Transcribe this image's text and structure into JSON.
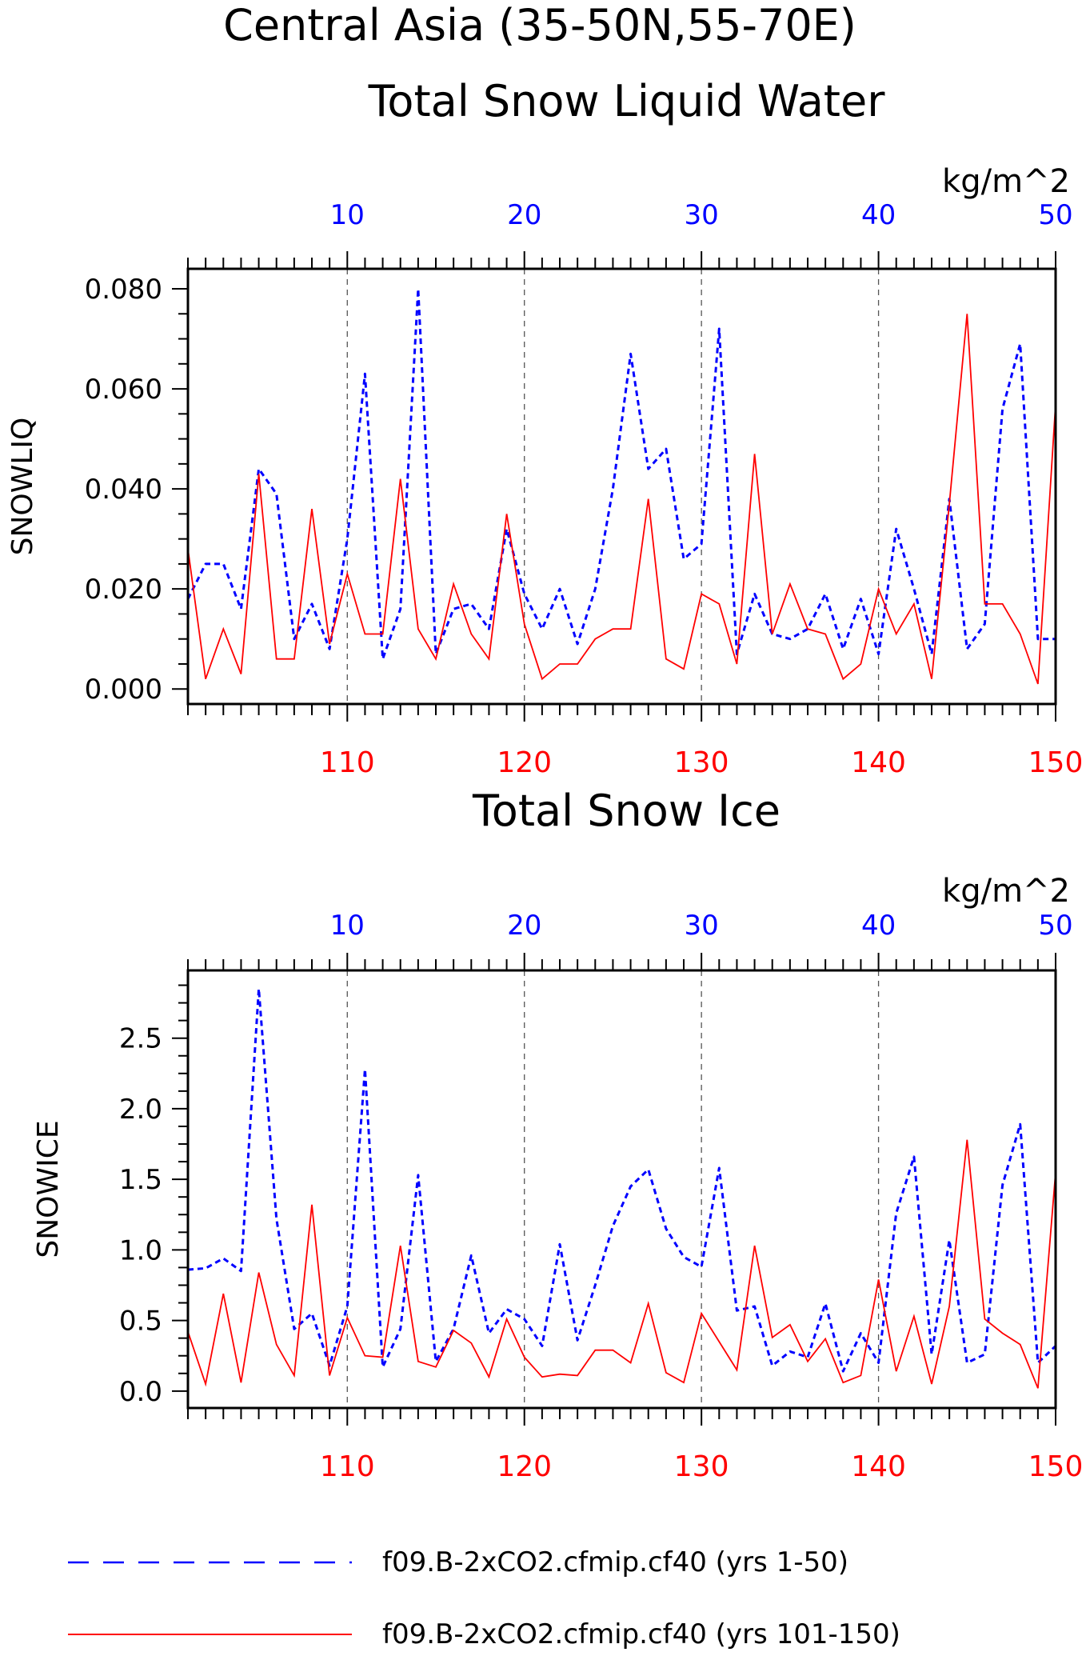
{
  "figure": {
    "title_line1": "Central Asia (35-50N,55-70E)",
    "legend": [
      {
        "label": "f09.B-2xCO2.cfmip.cf40 (yrs 1-50)",
        "color": "#0000ff",
        "style": "dashed"
      },
      {
        "label": "f09.B-2xCO2.cfmip.cf40 (yrs 101-150)",
        "color": "#ff0000",
        "style": "solid"
      }
    ],
    "colors": {
      "top_axis": "#0000ff",
      "bottom_axis": "#ff0000",
      "text": "#000000",
      "grid": "#555555"
    }
  },
  "chart_data": [
    {
      "type": "line",
      "title": "Total Snow Liquid Water",
      "units": "kg/m^2",
      "ylabel": "SNOWLIQ",
      "ylim": [
        -0.003,
        0.084
      ],
      "yticks": [
        0.0,
        0.02,
        0.04,
        0.06,
        0.08
      ],
      "ytick_labels": [
        "0.000",
        "0.020",
        "0.040",
        "0.060",
        "0.080"
      ],
      "top_xaxis": {
        "range": [
          1,
          50
        ],
        "ticks": [
          10,
          20,
          30,
          40,
          50
        ],
        "tick_labels": [
          "10",
          "20",
          "30",
          "40",
          "50"
        ]
      },
      "bottom_xaxis": {
        "range": [
          101,
          150
        ],
        "ticks": [
          110,
          120,
          130,
          140,
          150
        ],
        "tick_labels": [
          "110",
          "120",
          "130",
          "140",
          "150"
        ]
      },
      "grid": "vertical dashed at labeled x ticks",
      "series": [
        {
          "x": [
            1,
            2,
            3,
            4,
            5,
            6,
            7,
            8,
            9,
            10,
            11,
            12,
            13,
            14,
            15,
            16,
            17,
            18,
            19,
            20,
            21,
            22,
            23,
            24,
            25,
            26,
            27,
            28,
            29,
            30,
            31,
            32,
            33,
            34,
            35,
            36,
            37,
            38,
            39,
            40,
            41,
            42,
            43,
            44,
            45,
            46,
            47,
            48,
            49,
            50
          ],
          "values": [
            0.018,
            0.025,
            0.025,
            0.016,
            0.044,
            0.039,
            0.01,
            0.017,
            0.008,
            0.03,
            0.063,
            0.006,
            0.016,
            0.08,
            0.007,
            0.016,
            0.017,
            0.012,
            0.032,
            0.019,
            0.012,
            0.02,
            0.009,
            0.02,
            0.04,
            0.067,
            0.044,
            0.048,
            0.026,
            0.029,
            0.072,
            0.007,
            0.019,
            0.011,
            0.01,
            0.012,
            0.019,
            0.008,
            0.018,
            0.007,
            0.032,
            0.02,
            0.007,
            0.038,
            0.008,
            0.013,
            0.056,
            0.069,
            0.01,
            0.01
          ]
        },
        {
          "x": [
            101,
            102,
            103,
            104,
            105,
            106,
            107,
            108,
            109,
            110,
            111,
            112,
            113,
            114,
            115,
            116,
            117,
            118,
            119,
            120,
            121,
            122,
            123,
            124,
            125,
            126,
            127,
            128,
            129,
            130,
            131,
            132,
            133,
            134,
            135,
            136,
            137,
            138,
            139,
            140,
            141,
            142,
            143,
            144,
            145,
            146,
            147,
            148,
            149,
            150
          ],
          "values": [
            0.028,
            0.002,
            0.012,
            0.003,
            0.043,
            0.006,
            0.006,
            0.036,
            0.009,
            0.023,
            0.011,
            0.011,
            0.042,
            0.012,
            0.006,
            0.021,
            0.011,
            0.006,
            0.035,
            0.013,
            0.002,
            0.005,
            0.005,
            0.01,
            0.012,
            0.012,
            0.038,
            0.006,
            0.004,
            0.019,
            0.017,
            0.005,
            0.047,
            0.011,
            0.021,
            0.012,
            0.011,
            0.002,
            0.005,
            0.02,
            0.011,
            0.017,
            0.002,
            0.037,
            0.075,
            0.017,
            0.017,
            0.011,
            0.001,
            0.057
          ]
        }
      ]
    },
    {
      "type": "line",
      "title": "Total Snow Ice",
      "units": "kg/m^2",
      "ylabel": "SNOWICE",
      "ylim": [
        -0.12,
        2.98
      ],
      "yticks": [
        0.0,
        0.5,
        1.0,
        1.5,
        2.0,
        2.5
      ],
      "ytick_labels": [
        "0.0",
        "0.5",
        "1.0",
        "1.5",
        "2.0",
        "2.5"
      ],
      "top_xaxis": {
        "range": [
          1,
          50
        ],
        "ticks": [
          10,
          20,
          30,
          40,
          50
        ],
        "tick_labels": [
          "10",
          "20",
          "30",
          "40",
          "50"
        ]
      },
      "bottom_xaxis": {
        "range": [
          101,
          150
        ],
        "ticks": [
          110,
          120,
          130,
          140,
          150
        ],
        "tick_labels": [
          "110",
          "120",
          "130",
          "140",
          "150"
        ]
      },
      "grid": "vertical dashed at labeled x ticks",
      "series": [
        {
          "x": [
            1,
            2,
            3,
            4,
            5,
            6,
            7,
            8,
            9,
            10,
            11,
            12,
            13,
            14,
            15,
            16,
            17,
            18,
            19,
            20,
            21,
            22,
            23,
            24,
            25,
            26,
            27,
            28,
            29,
            30,
            31,
            32,
            33,
            34,
            35,
            36,
            37,
            38,
            39,
            40,
            41,
            42,
            43,
            44,
            45,
            46,
            47,
            48,
            49,
            50
          ],
          "values": [
            0.86,
            0.87,
            0.94,
            0.85,
            2.85,
            1.22,
            0.44,
            0.55,
            0.18,
            0.6,
            2.28,
            0.17,
            0.44,
            1.53,
            0.21,
            0.44,
            0.96,
            0.41,
            0.58,
            0.51,
            0.32,
            1.04,
            0.36,
            0.75,
            1.17,
            1.45,
            1.57,
            1.15,
            0.95,
            0.88,
            1.58,
            0.57,
            0.6,
            0.18,
            0.28,
            0.24,
            0.62,
            0.14,
            0.41,
            0.2,
            1.26,
            1.66,
            0.26,
            1.07,
            0.2,
            0.26,
            1.46,
            1.89,
            0.2,
            0.32
          ]
        },
        {
          "x": [
            101,
            102,
            103,
            104,
            105,
            106,
            107,
            108,
            109,
            110,
            111,
            112,
            113,
            114,
            115,
            116,
            117,
            118,
            119,
            120,
            121,
            122,
            123,
            124,
            125,
            126,
            127,
            128,
            129,
            130,
            131,
            132,
            133,
            134,
            135,
            136,
            137,
            138,
            139,
            140,
            141,
            142,
            143,
            144,
            145,
            146,
            147,
            148,
            149,
            150
          ],
          "values": [
            0.42,
            0.05,
            0.69,
            0.06,
            0.84,
            0.33,
            0.11,
            1.32,
            0.11,
            0.52,
            0.25,
            0.24,
            1.03,
            0.21,
            0.17,
            0.43,
            0.34,
            0.1,
            0.51,
            0.24,
            0.1,
            0.12,
            0.11,
            0.29,
            0.29,
            0.2,
            0.62,
            0.13,
            0.06,
            0.55,
            0.35,
            0.15,
            1.03,
            0.38,
            0.47,
            0.21,
            0.37,
            0.06,
            0.11,
            0.79,
            0.14,
            0.53,
            0.05,
            0.6,
            1.78,
            0.51,
            0.41,
            0.33,
            0.02,
            1.55
          ]
        }
      ]
    }
  ]
}
